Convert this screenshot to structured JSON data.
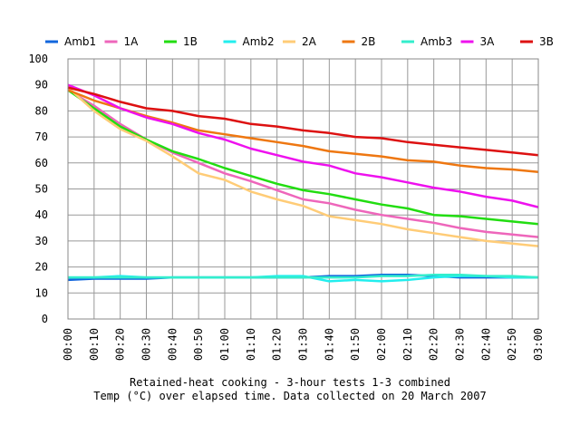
{
  "chart_data": {
    "type": "line",
    "caption_line1": "Retained-heat cooking - 3-hour tests 1-3 combined",
    "caption_line2": "Temp (°C) over elapsed time. Data collected on 20 March 2007",
    "ylim": [
      0,
      100
    ],
    "yticks": [
      "0",
      "10",
      "20",
      "30",
      "40",
      "50",
      "60",
      "70",
      "80",
      "90",
      "100"
    ],
    "grid": true,
    "legend_position": "top",
    "categories": [
      "00:00",
      "00:10",
      "00:20",
      "00:30",
      "00:40",
      "00:50",
      "01:00",
      "01:10",
      "01:20",
      "01:30",
      "01:40",
      "01:50",
      "02:00",
      "02:10",
      "02:20",
      "02:30",
      "02:40",
      "02:50",
      "03:00"
    ],
    "series": [
      {
        "name": "Amb1",
        "color": "#1166dd",
        "values": [
          15,
          15.5,
          15.5,
          15.5,
          16,
          16,
          16,
          16,
          16,
          16,
          16.5,
          16.5,
          17,
          17,
          16.5,
          16,
          16,
          16,
          16
        ]
      },
      {
        "name": "1A",
        "color": "#ee66bb",
        "values": [
          88,
          82,
          75,
          69,
          64,
          60,
          56,
          53,
          49.5,
          46,
          44.5,
          42,
          40,
          38.5,
          37,
          35,
          33.5,
          32.5,
          31.5
        ]
      },
      {
        "name": "1B",
        "color": "#22dd11",
        "values": [
          88,
          81,
          74,
          69,
          64.5,
          61.5,
          58,
          55,
          52,
          49.5,
          48,
          46,
          44,
          42.5,
          40,
          39.5,
          38.5,
          37.5,
          36.5
        ]
      },
      {
        "name": "Amb2",
        "color": "#22eeee",
        "values": [
          16,
          16,
          16.5,
          16,
          16,
          16,
          16,
          16,
          16.5,
          16.5,
          14.5,
          15,
          14.5,
          15,
          16,
          16.5,
          16.5,
          16,
          16
        ]
      },
      {
        "name": "2A",
        "color": "#ffcc77",
        "values": [
          89,
          80,
          73,
          68.5,
          62.5,
          56,
          53.5,
          49,
          46,
          43.5,
          39.5,
          38,
          36.5,
          34.5,
          33,
          31.5,
          30,
          29,
          28
        ]
      },
      {
        "name": "2B",
        "color": "#ee7711",
        "values": [
          88,
          84,
          81,
          78,
          75.5,
          72.5,
          71,
          69.5,
          68,
          66.5,
          64.5,
          63.5,
          62.5,
          61,
          60.5,
          59,
          58,
          57.5,
          56.5
        ]
      },
      {
        "name": "Amb3",
        "color": "#33eecc",
        "values": [
          16,
          16,
          16,
          16,
          16,
          16,
          16,
          16,
          16,
          16,
          16,
          16,
          16.5,
          16.5,
          17,
          17,
          16.5,
          16.5,
          16
        ]
      },
      {
        "name": "3A",
        "color": "#ee11ee",
        "values": [
          90,
          86,
          81,
          77.5,
          75,
          71.5,
          69,
          65.5,
          63,
          60.5,
          59,
          56,
          54.5,
          52.5,
          50.5,
          49,
          47,
          45.5,
          43
        ]
      },
      {
        "name": "3B",
        "color": "#dd1111",
        "values": [
          89,
          86.5,
          83.5,
          81,
          80,
          78,
          77,
          75,
          74,
          72.5,
          71.5,
          70,
          69.5,
          68,
          67,
          66,
          65,
          64,
          63
        ]
      }
    ]
  }
}
